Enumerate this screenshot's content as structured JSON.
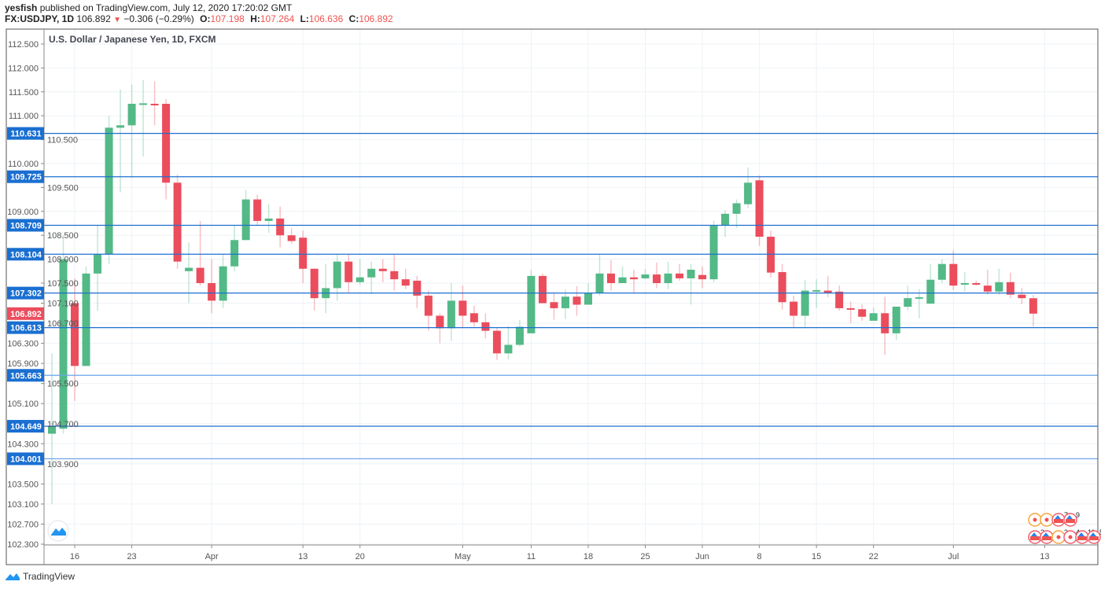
{
  "header": {
    "author": "yesfish",
    "published_text": "published on TradingView.com, July 12, 2020 17:20:02 GMT",
    "symbol": "FX:USDJPY, 1D",
    "last": "106.892",
    "change": "−0.306 (−0.29%)",
    "o_label": "O:",
    "o": "107.198",
    "h_label": "H:",
    "h": "107.264",
    "l_label": "L:",
    "l": "106.636",
    "c_label": "C:",
    "c": "106.892"
  },
  "legend": "U.S. Dollar / Japanese Yen, 1D, FXCM",
  "brand": "TradingView",
  "colors": {
    "up": "#53b987",
    "down": "#eb4d5c",
    "line": "#1e6fd0",
    "line_light": "#6aa6e8",
    "label": "#1a6fd1",
    "last": "#eb4d5c",
    "grid": "#eef2f6"
  },
  "chart_data": {
    "type": "candlestick",
    "title": "U.S. Dollar / Japanese Yen, 1D, FXCM",
    "ylim": [
      102.3,
      112.5
    ],
    "yticks": [
      "112.500",
      "112.000",
      "111.500",
      "111.000",
      "110.500",
      "110.000",
      "109.500",
      "109.000",
      "108.500",
      "108.000",
      "107.500",
      "107.100",
      "106.700",
      "106.300",
      "105.900",
      "105.500",
      "105.100",
      "104.700",
      "104.300",
      "103.900",
      "103.500",
      "103.100",
      "102.700",
      "102.300"
    ],
    "xticks": [
      {
        "label": "16",
        "bar": 2
      },
      {
        "label": "23",
        "bar": 7
      },
      {
        "label": "Apr",
        "bar": 14
      },
      {
        "label": "13",
        "bar": 22
      },
      {
        "label": "20",
        "bar": 27
      },
      {
        "label": "May",
        "bar": 36
      },
      {
        "label": "11",
        "bar": 42
      },
      {
        "label": "18",
        "bar": 47
      },
      {
        "label": "25",
        "bar": 52
      },
      {
        "label": "Jun",
        "bar": 57
      },
      {
        "label": "8",
        "bar": 62
      },
      {
        "label": "15",
        "bar": 67
      },
      {
        "label": "22",
        "bar": 72
      },
      {
        "label": "Jul",
        "bar": 79
      },
      {
        "label": "13",
        "bar": 87
      }
    ],
    "first_bar": -1,
    "ohlc": [
      [
        105.6,
        105.66,
        104.55,
        104.6
      ],
      [
        104.5,
        106.1,
        103.1,
        104.65
      ],
      [
        104.6,
        108.5,
        104.5,
        108.0
      ],
      [
        107.1,
        107.6,
        105.15,
        105.85
      ],
      [
        105.85,
        107.85,
        105.85,
        107.7
      ],
      [
        107.7,
        108.7,
        106.95,
        108.1
      ],
      [
        108.1,
        111.0,
        107.9,
        110.75
      ],
      [
        110.75,
        111.55,
        109.4,
        110.8
      ],
      [
        110.8,
        111.65,
        109.7,
        111.25
      ],
      [
        111.24,
        111.75,
        110.15,
        111.26
      ],
      [
        111.25,
        111.72,
        110.8,
        111.22
      ],
      [
        111.25,
        111.35,
        109.25,
        109.6
      ],
      [
        109.6,
        109.77,
        107.8,
        107.95
      ],
      [
        107.75,
        108.35,
        107.1,
        107.82
      ],
      [
        107.82,
        108.8,
        107.45,
        107.5
      ],
      [
        107.5,
        108.0,
        106.9,
        107.15
      ],
      [
        107.15,
        108.1,
        107.0,
        107.85
      ],
      [
        107.85,
        108.7,
        107.75,
        108.4
      ],
      [
        108.4,
        109.45,
        108.4,
        109.25
      ],
      [
        109.25,
        109.35,
        108.72,
        108.8
      ],
      [
        108.8,
        109.15,
        108.55,
        108.85
      ],
      [
        108.85,
        109.1,
        108.25,
        108.5
      ],
      [
        108.5,
        108.65,
        108.33,
        108.38
      ],
      [
        108.45,
        108.6,
        107.5,
        107.8
      ],
      [
        107.8,
        107.8,
        106.95,
        107.2
      ],
      [
        107.2,
        107.9,
        106.9,
        107.4
      ],
      [
        107.4,
        108.1,
        107.15,
        107.95
      ],
      [
        107.95,
        108.1,
        107.3,
        107.52
      ],
      [
        107.52,
        108.0,
        107.47,
        107.62
      ],
      [
        107.62,
        107.95,
        107.28,
        107.8
      ],
      [
        107.8,
        108.0,
        107.52,
        107.75
      ],
      [
        107.75,
        108.1,
        107.35,
        107.58
      ],
      [
        107.58,
        107.8,
        107.38,
        107.45
      ],
      [
        107.55,
        107.65,
        107.0,
        107.25
      ],
      [
        107.25,
        107.35,
        106.55,
        106.85
      ],
      [
        106.85,
        106.9,
        106.3,
        106.6
      ],
      [
        106.6,
        107.5,
        106.35,
        107.15
      ],
      [
        107.15,
        107.45,
        106.6,
        106.85
      ],
      [
        106.9,
        107.05,
        106.63,
        106.72
      ],
      [
        106.72,
        106.9,
        106.4,
        106.55
      ],
      [
        106.55,
        106.6,
        105.97,
        106.1
      ],
      [
        106.1,
        106.65,
        105.98,
        106.27
      ],
      [
        106.27,
        106.77,
        106.24,
        106.63
      ],
      [
        106.5,
        107.78,
        106.5,
        107.65
      ],
      [
        107.65,
        107.7,
        107.1,
        107.1
      ],
      [
        107.12,
        107.3,
        106.77,
        107.0
      ],
      [
        107.0,
        107.37,
        106.78,
        107.23
      ],
      [
        107.23,
        107.44,
        106.85,
        107.07
      ],
      [
        107.07,
        107.5,
        107.07,
        107.3
      ],
      [
        107.3,
        108.1,
        107.25,
        107.7
      ],
      [
        107.7,
        107.98,
        107.35,
        107.5
      ],
      [
        107.5,
        107.85,
        107.5,
        107.62
      ],
      [
        107.62,
        107.78,
        107.3,
        107.58
      ],
      [
        107.6,
        107.8,
        107.58,
        107.68
      ],
      [
        107.68,
        107.93,
        107.4,
        107.5
      ],
      [
        107.5,
        107.95,
        107.38,
        107.7
      ],
      [
        107.7,
        107.9,
        107.55,
        107.6
      ],
      [
        107.6,
        107.9,
        107.07,
        107.78
      ],
      [
        107.67,
        107.85,
        107.4,
        107.58
      ],
      [
        107.58,
        108.8,
        107.52,
        108.7
      ],
      [
        108.7,
        109.03,
        108.47,
        108.95
      ],
      [
        108.95,
        109.25,
        108.65,
        109.17
      ],
      [
        109.15,
        109.92,
        109.07,
        109.6
      ],
      [
        109.65,
        109.75,
        108.28,
        108.47
      ],
      [
        108.47,
        108.6,
        107.62,
        107.72
      ],
      [
        107.73,
        107.9,
        106.97,
        107.12
      ],
      [
        107.13,
        107.25,
        106.6,
        106.85
      ],
      [
        106.85,
        107.56,
        106.6,
        107.35
      ],
      [
        107.33,
        107.58,
        107.0,
        107.36
      ],
      [
        107.35,
        107.65,
        107.22,
        107.3
      ],
      [
        107.33,
        107.45,
        106.95,
        107.0
      ],
      [
        107.0,
        107.13,
        106.7,
        106.97
      ],
      [
        106.98,
        107.08,
        106.75,
        106.83
      ],
      [
        106.75,
        107.02,
        106.75,
        106.9
      ],
      [
        106.9,
        107.23,
        106.07,
        106.5
      ],
      [
        106.5,
        107.03,
        106.37,
        107.03
      ],
      [
        107.03,
        107.45,
        106.96,
        107.2
      ],
      [
        107.2,
        107.38,
        106.8,
        107.22
      ],
      [
        107.09,
        107.9,
        107.09,
        107.57
      ],
      [
        107.57,
        108.0,
        107.5,
        107.9
      ],
      [
        107.9,
        108.18,
        107.36,
        107.45
      ],
      [
        107.47,
        107.73,
        107.33,
        107.5
      ],
      [
        107.5,
        107.55,
        107.45,
        107.48
      ],
      [
        107.45,
        107.78,
        107.27,
        107.33
      ],
      [
        107.33,
        107.8,
        107.27,
        107.52
      ],
      [
        107.52,
        107.72,
        107.2,
        107.27
      ],
      [
        107.27,
        107.4,
        107.08,
        107.2
      ],
      [
        107.198,
        107.264,
        106.636,
        106.892
      ]
    ],
    "horizontal_lines": [
      {
        "price": "110.631",
        "style": "dark"
      },
      {
        "price": "109.725",
        "style": "dark"
      },
      {
        "price": "108.709",
        "style": "dark"
      },
      {
        "price": "108.104",
        "style": "dark"
      },
      {
        "price": "107.302",
        "style": "dark"
      },
      {
        "price": "106.613",
        "style": "dark"
      },
      {
        "price": "105.663",
        "style": "light"
      },
      {
        "price": "104.649",
        "style": "dark"
      },
      {
        "price": "104.001",
        "style": "light"
      }
    ],
    "last_price": "106.892",
    "events": [
      {
        "row": 0,
        "label": "",
        "kind": "orange"
      },
      {
        "row": 0,
        "label": "",
        "kind": "orange"
      },
      {
        "row": 0,
        "label": "7",
        "kind": "us"
      },
      {
        "row": 0,
        "label": "9",
        "kind": "us"
      },
      {
        "row": 1,
        "label": "2",
        "kind": "us"
      },
      {
        "row": 1,
        "label": "",
        "kind": "us"
      },
      {
        "row": 1,
        "label": "3",
        "kind": "orange"
      },
      {
        "row": 1,
        "label": "4",
        "kind": "red"
      },
      {
        "row": 1,
        "label": "11",
        "kind": "us"
      },
      {
        "row": 1,
        "label": "5",
        "kind": "us"
      }
    ]
  }
}
